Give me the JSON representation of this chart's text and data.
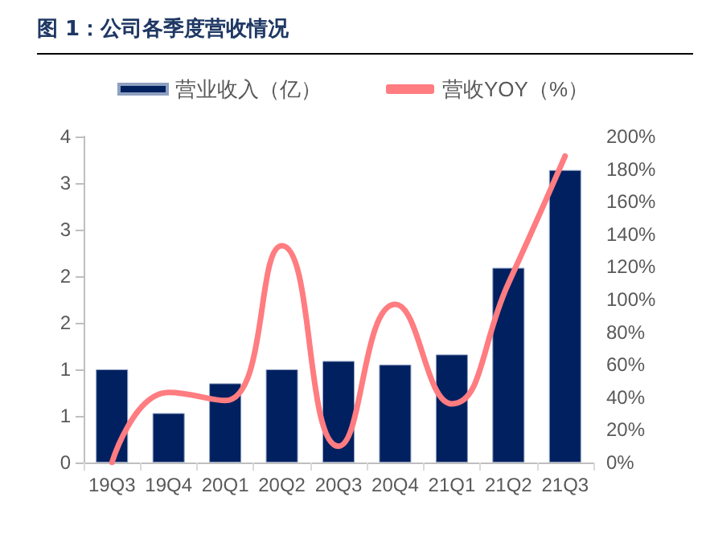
{
  "chart_data": {
    "type": "bar",
    "title": "图 1：公司各季度营收情况",
    "categories": [
      "19Q3",
      "19Q4",
      "20Q1",
      "20Q2",
      "20Q3",
      "20Q4",
      "21Q1",
      "21Q2",
      "21Q3"
    ],
    "series": [
      {
        "name": "营业收入（亿）",
        "color": "#002060",
        "values": [
          1.0,
          0.53,
          0.85,
          1.0,
          1.09,
          1.05,
          1.16,
          2.09,
          3.14
        ]
      },
      {
        "name": "营收YOY（%）",
        "type": "line",
        "axis": "y2",
        "color": "#ff7c80",
        "marker": "none",
        "values": [
          0,
          43,
          38,
          133,
          10,
          97,
          36,
          110,
          188
        ]
      }
    ],
    "ylim": [
      0,
      3.5
    ],
    "yticks": [
      0,
      {
        "value": 0.5,
        "label": "1"
      },
      1,
      {
        "value": 1.5,
        "label": "2"
      },
      2,
      {
        "value": 2.5,
        "label": "3"
      },
      3,
      {
        "value": 3.5,
        "label": "4"
      }
    ],
    "y2lim": [
      0,
      200
    ],
    "y2ticks": [
      {
        "value": 0,
        "label": "0%"
      },
      {
        "value": 20,
        "label": "20%"
      },
      {
        "value": 40,
        "label": "40%"
      },
      {
        "value": 60,
        "label": "60%"
      },
      {
        "value": 80,
        "label": "80%"
      },
      {
        "value": 100,
        "label": "100%"
      },
      {
        "value": 120,
        "label": "120%"
      },
      {
        "value": 140,
        "label": "140%"
      },
      {
        "value": 160,
        "label": "160%"
      },
      {
        "value": 180,
        "label": "180%"
      },
      {
        "value": 200,
        "label": "200%"
      }
    ],
    "grid": false,
    "legend": "top"
  }
}
